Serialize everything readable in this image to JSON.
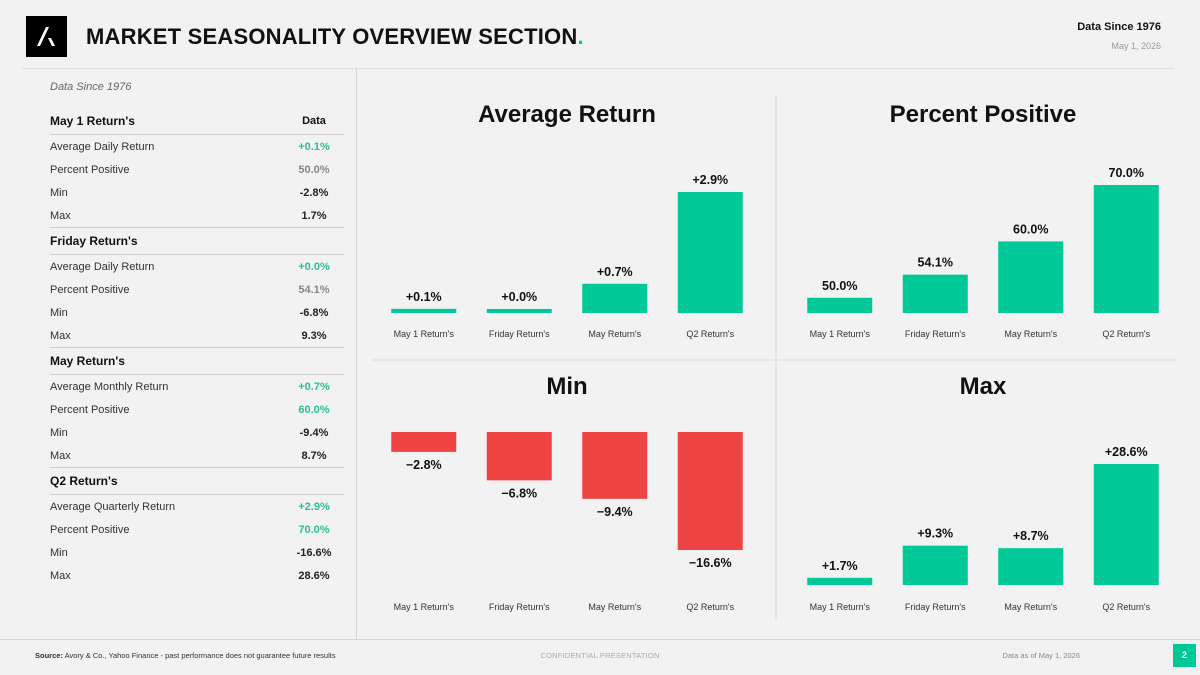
{
  "header": {
    "title": "MARKET SEASONALITY OVERVIEW SECTION",
    "title_dot": ".",
    "since": "Data Since 1976",
    "date": "May 1, 2026"
  },
  "table": {
    "note": "Data Since 1976",
    "sections": [
      {
        "title": "May 1 Return's",
        "col": "Data",
        "rows": [
          {
            "label": "Average Daily Return",
            "value": "+0.1%",
            "style": "green"
          },
          {
            "label": "Percent Positive",
            "value": "50.0%",
            "style": "grey"
          },
          {
            "label": "Min",
            "value": "-2.8%",
            "style": "dark"
          },
          {
            "label": "Max",
            "value": "1.7%",
            "style": "dark"
          }
        ]
      },
      {
        "title": "Friday Return's",
        "col": "",
        "rows": [
          {
            "label": "Average Daily Return",
            "value": "+0.0%",
            "style": "green"
          },
          {
            "label": "Percent Positive",
            "value": "54.1%",
            "style": "grey"
          },
          {
            "label": "Min",
            "value": "-6.8%",
            "style": "dark"
          },
          {
            "label": "Max",
            "value": "9.3%",
            "style": "dark"
          }
        ]
      },
      {
        "title": "May Return's",
        "col": "",
        "rows": [
          {
            "label": "Average Monthly Return",
            "value": "+0.7%",
            "style": "green"
          },
          {
            "label": "Percent Positive",
            "value": "60.0%",
            "style": "green"
          },
          {
            "label": "Min",
            "value": "-9.4%",
            "style": "dark"
          },
          {
            "label": "Max",
            "value": "8.7%",
            "style": "dark"
          }
        ]
      },
      {
        "title": "Q2 Return's",
        "col": "",
        "rows": [
          {
            "label": "Average Quarterly Return",
            "value": "+2.9%",
            "style": "green"
          },
          {
            "label": "Percent Positive",
            "value": "70.0%",
            "style": "green"
          },
          {
            "label": "Min",
            "value": "-16.6%",
            "style": "dark"
          },
          {
            "label": "Max",
            "value": "28.6%",
            "style": "dark"
          }
        ]
      }
    ]
  },
  "colors": {
    "positive": "#00c896",
    "negative": "#ef4444",
    "accent": "#00c896"
  },
  "chart_data": [
    {
      "type": "bar",
      "title": "Average Return",
      "categories": [
        "May 1 Return's",
        "Friday Return's",
        "May Return's",
        "Q2 Return's"
      ],
      "values": [
        0.1,
        0.02,
        0.7,
        2.9
      ],
      "labels": [
        "+0.1%",
        "+0.0%",
        "+0.7%",
        "+2.9%"
      ],
      "ylim": [
        0,
        2.9
      ]
    },
    {
      "type": "bar",
      "title": "Percent Positive",
      "categories": [
        "May 1 Return's",
        "Friday Return's",
        "May Return's",
        "Q2 Return's"
      ],
      "values": [
        50.0,
        54.1,
        60.0,
        70.0
      ],
      "labels": [
        "50.0%",
        "54.1%",
        "60.0%",
        "70.0%"
      ],
      "ylim": [
        47.3,
        70.0
      ]
    },
    {
      "type": "bar",
      "title": "Min",
      "categories": [
        "May 1 Return's",
        "Friday Return's",
        "May Return's",
        "Q2 Return's"
      ],
      "values": [
        -2.8,
        -6.8,
        -9.4,
        -16.6
      ],
      "labels": [
        "−2.8%",
        "−6.8%",
        "−9.4%",
        "−16.6%"
      ],
      "ylim": [
        -16.6,
        0
      ]
    },
    {
      "type": "bar",
      "title": "Max",
      "categories": [
        "May 1 Return's",
        "Friday Return's",
        "May Return's",
        "Q2 Return's"
      ],
      "values": [
        1.7,
        9.3,
        8.7,
        28.6
      ],
      "labels": [
        "+1.7%",
        "+9.3%",
        "+8.7%",
        "+28.6%"
      ],
      "ylim": [
        0,
        28.6
      ]
    }
  ],
  "footer": {
    "source_label": "Source:",
    "source_text": " Avory & Co., Yahoo Finance - past performance does not guarantee future results",
    "confidential": "CONFIDENTIAL PRESENTATION",
    "as_of": "Data as of May 1, 2026",
    "page": "2"
  }
}
